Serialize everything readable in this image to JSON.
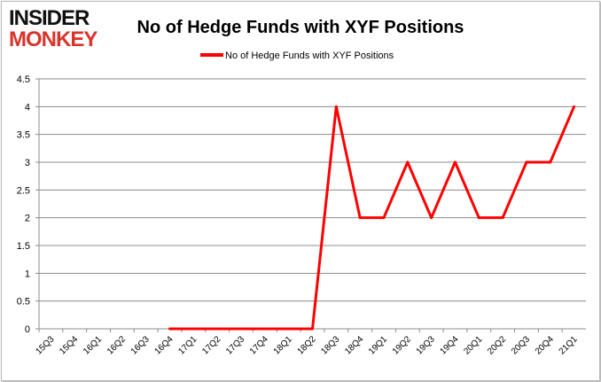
{
  "logo": {
    "line1": "INSIDER",
    "line2": "MONKEY",
    "color1": "#111111",
    "color2": "#d9342b"
  },
  "chart_data": {
    "type": "line",
    "title": "No of Hedge Funds with XYF Positions",
    "xlabel": "",
    "ylabel": "",
    "categories": [
      "15Q3",
      "15Q4",
      "16Q1",
      "16Q2",
      "16Q3",
      "16Q4",
      "17Q1",
      "17Q2",
      "17Q3",
      "17Q4",
      "18Q1",
      "18Q2",
      "18Q3",
      "18Q4",
      "19Q1",
      "19Q2",
      "19Q3",
      "19Q4",
      "20Q1",
      "20Q2",
      "20Q3",
      "20Q4",
      "21Q1"
    ],
    "series": [
      {
        "name": "No of Hedge Funds with XYF Positions",
        "color": "#ff0000",
        "values": [
          null,
          null,
          null,
          null,
          null,
          0,
          0,
          0,
          0,
          0,
          0,
          0,
          4,
          2,
          2,
          3,
          2,
          3,
          2,
          2,
          3,
          3,
          4
        ]
      }
    ],
    "ylim": [
      0,
      4.5
    ],
    "yticks": [
      "0",
      "0.5",
      "1",
      "1.5",
      "2",
      "2.5",
      "3",
      "3.5",
      "4",
      "4.5"
    ],
    "grid": true,
    "legend": "top"
  }
}
